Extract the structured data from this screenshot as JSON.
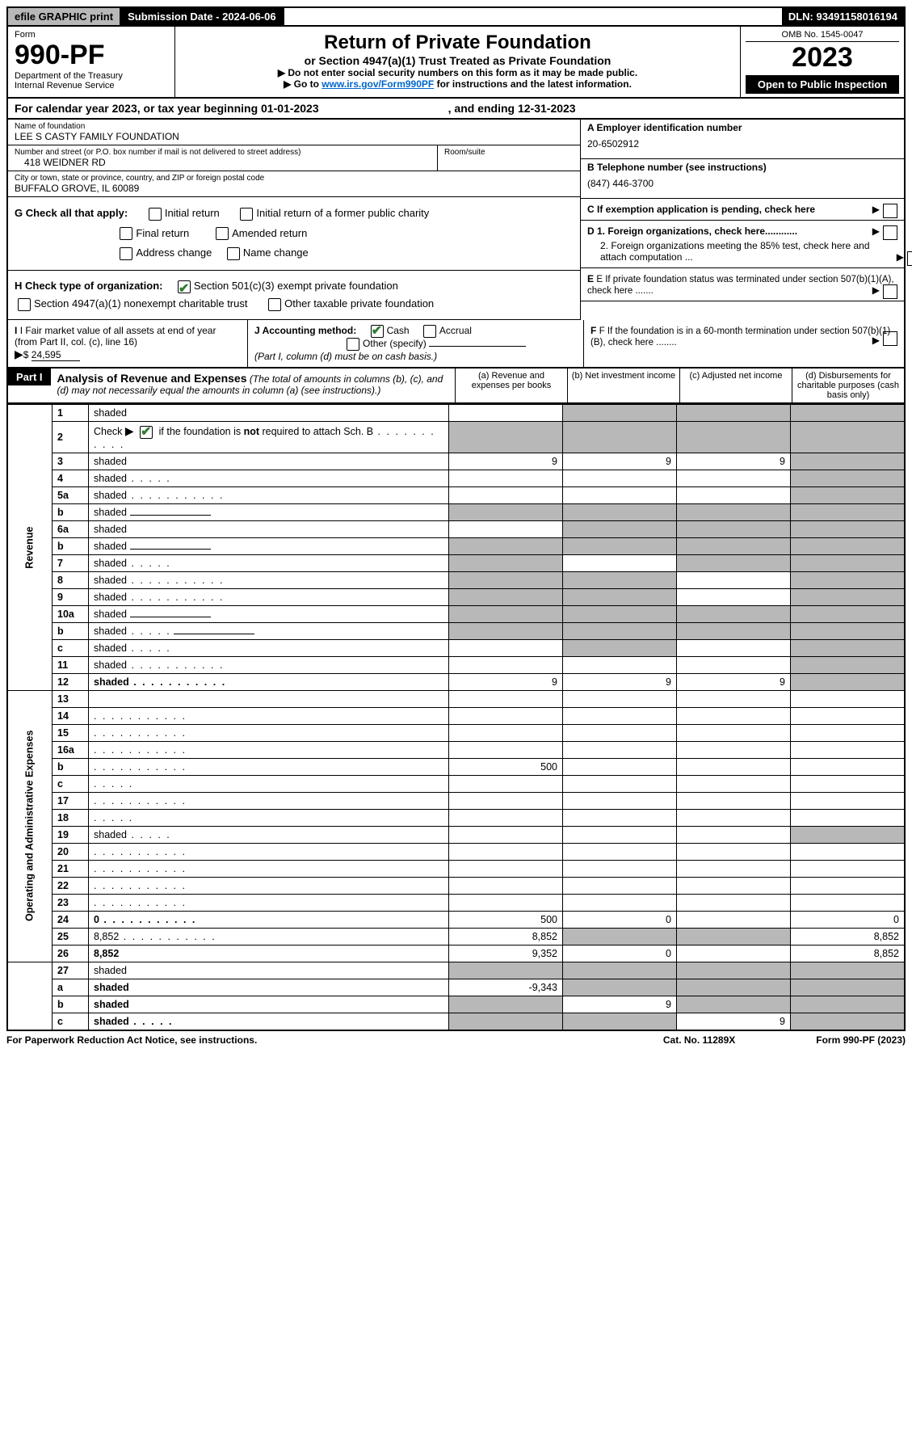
{
  "top": {
    "efile": "efile GRAPHIC print",
    "submission": "Submission Date - 2024-06-06",
    "dln": "DLN: 93491158016194"
  },
  "header": {
    "form_label": "Form",
    "form_no": "990-PF",
    "dept": "Department of the Treasury",
    "irs": "Internal Revenue Service",
    "title": "Return of Private Foundation",
    "subtitle": "or Section 4947(a)(1) Trust Treated as Private Foundation",
    "instr1": "▶ Do not enter social security numbers on this form as it may be made public.",
    "instr2_pre": "▶ Go to ",
    "instr2_link": "www.irs.gov/Form990PF",
    "instr2_post": " for instructions and the latest information.",
    "omb": "OMB No. 1545-0047",
    "year": "2023",
    "open": "Open to Public Inspection"
  },
  "calyear": {
    "text": "For calendar year 2023, or tax year beginning 01-01-2023",
    "ending": ", and ending 12-31-2023"
  },
  "entity": {
    "name_label": "Name of foundation",
    "name": "LEE S CASTY FAMILY FOUNDATION",
    "addr_label": "Number and street (or P.O. box number if mail is not delivered to street address)",
    "addr": "418 WEIDNER RD",
    "room_label": "Room/suite",
    "city_label": "City or town, state or province, country, and ZIP or foreign postal code",
    "city": "BUFFALO GROVE, IL  60089",
    "ein_label": "A Employer identification number",
    "ein": "20-6502912",
    "phone_label": "B Telephone number (see instructions)",
    "phone": "(847) 446-3700",
    "c_label": "C If exemption application is pending, check here",
    "d1": "D 1. Foreign organizations, check here............",
    "d2": "2. Foreign organizations meeting the 85% test, check here and attach computation ...",
    "e_label": "E  If private foundation status was terminated under section 507(b)(1)(A), check here .......",
    "f_label": "F  If the foundation is in a 60-month termination under section 507(b)(1)(B), check here ........"
  },
  "g": {
    "label": "G Check all that apply:",
    "initial": "Initial return",
    "initial_former": "Initial return of a former public charity",
    "final": "Final return",
    "amended": "Amended return",
    "addr_change": "Address change",
    "name_change": "Name change"
  },
  "h": {
    "label": "H Check type of organization:",
    "opt1": "Section 501(c)(3) exempt private foundation",
    "opt2": "Section 4947(a)(1) nonexempt charitable trust",
    "opt3": "Other taxable private foundation"
  },
  "i": {
    "label": "I Fair market value of all assets at end of year (from Part II, col. (c), line 16)",
    "value": "24,595"
  },
  "j": {
    "label": "J Accounting method:",
    "cash": "Cash",
    "accrual": "Accrual",
    "other": "Other (specify)",
    "note": "(Part I, column (d) must be on cash basis.)"
  },
  "part1": {
    "label": "Part I",
    "title": "Analysis of Revenue and Expenses",
    "note": " (The total of amounts in columns (b), (c), and (d) may not necessarily equal the amounts in column (a) (see instructions).)",
    "col_a": "(a)   Revenue and expenses per books",
    "col_b": "(b)   Net investment income",
    "col_c": "(c)   Adjusted net income",
    "col_d": "(d)   Disbursements for charitable purposes (cash basis only)"
  },
  "side": {
    "revenue": "Revenue",
    "expenses": "Operating and Administrative Expenses"
  },
  "rows": [
    {
      "n": "1",
      "d": "shaded",
      "a": "",
      "b": "shaded",
      "c": "shaded"
    },
    {
      "n": "2",
      "d": "shaded",
      "dots": true,
      "a": "shaded",
      "b": "shaded",
      "c": "shaded"
    },
    {
      "n": "3",
      "d": "shaded",
      "a": "9",
      "b": "9",
      "c": "9"
    },
    {
      "n": "4",
      "d": "shaded",
      "dots": "short",
      "a": "",
      "b": "",
      "c": ""
    },
    {
      "n": "5a",
      "d": "shaded",
      "dots": true,
      "a": "",
      "b": "",
      "c": ""
    },
    {
      "n": "b",
      "d": "shaded",
      "inline": true,
      "a": "shaded",
      "b": "shaded",
      "c": "shaded"
    },
    {
      "n": "6a",
      "d": "shaded",
      "a": "",
      "b": "shaded",
      "c": "shaded"
    },
    {
      "n": "b",
      "d": "shaded",
      "inline": true,
      "a": "shaded",
      "b": "shaded",
      "c": "shaded"
    },
    {
      "n": "7",
      "d": "shaded",
      "dots": "short",
      "a": "shaded",
      "b": "",
      "c": "shaded"
    },
    {
      "n": "8",
      "d": "shaded",
      "dots": true,
      "a": "shaded",
      "b": "shaded",
      "c": ""
    },
    {
      "n": "9",
      "d": "shaded",
      "dots": true,
      "a": "shaded",
      "b": "shaded",
      "c": ""
    },
    {
      "n": "10a",
      "d": "shaded",
      "inline": true,
      "a": "shaded",
      "b": "shaded",
      "c": "shaded"
    },
    {
      "n": "b",
      "d": "shaded",
      "dots": "short",
      "inline": true,
      "a": "shaded",
      "b": "shaded",
      "c": "shaded"
    },
    {
      "n": "c",
      "d": "shaded",
      "dots": "short",
      "a": "",
      "b": "shaded",
      "c": ""
    },
    {
      "n": "11",
      "d": "shaded",
      "dots": true,
      "a": "",
      "b": "",
      "c": ""
    },
    {
      "n": "12",
      "d": "shaded",
      "dots": true,
      "bold": true,
      "a": "9",
      "b": "9",
      "c": "9"
    }
  ],
  "exp_rows": [
    {
      "n": "13",
      "d": "",
      "a": "",
      "b": "",
      "c": ""
    },
    {
      "n": "14",
      "d": "",
      "dots": true,
      "a": "",
      "b": "",
      "c": ""
    },
    {
      "n": "15",
      "d": "",
      "dots": true,
      "a": "",
      "b": "",
      "c": ""
    },
    {
      "n": "16a",
      "d": "",
      "dots": true,
      "a": "",
      "b": "",
      "c": ""
    },
    {
      "n": "b",
      "d": "",
      "dots": true,
      "a": "500",
      "b": "",
      "c": ""
    },
    {
      "n": "c",
      "d": "",
      "dots": "short",
      "a": "",
      "b": "",
      "c": ""
    },
    {
      "n": "17",
      "d": "",
      "dots": true,
      "a": "",
      "b": "",
      "c": ""
    },
    {
      "n": "18",
      "d": "",
      "dots": "short",
      "a": "",
      "b": "",
      "c": ""
    },
    {
      "n": "19",
      "d": "shaded",
      "dots": "short",
      "a": "",
      "b": "",
      "c": ""
    },
    {
      "n": "20",
      "d": "",
      "dots": true,
      "a": "",
      "b": "",
      "c": ""
    },
    {
      "n": "21",
      "d": "",
      "dots": true,
      "a": "",
      "b": "",
      "c": ""
    },
    {
      "n": "22",
      "d": "",
      "dots": true,
      "a": "",
      "b": "",
      "c": ""
    },
    {
      "n": "23",
      "d": "",
      "dots": true,
      "a": "",
      "b": "",
      "c": ""
    },
    {
      "n": "24",
      "d": "0",
      "dots": true,
      "bold": true,
      "a": "500",
      "b": "0",
      "c": ""
    },
    {
      "n": "25",
      "d": "8,852",
      "dots": true,
      "a": "8,852",
      "b": "shaded",
      "c": "shaded"
    },
    {
      "n": "26",
      "d": "8,852",
      "bold": true,
      "a": "9,352",
      "b": "0",
      "c": ""
    }
  ],
  "net_rows": [
    {
      "n": "27",
      "d": "shaded",
      "a": "shaded",
      "b": "shaded",
      "c": "shaded"
    },
    {
      "n": "a",
      "d": "shaded",
      "bold": true,
      "a": "-9,343",
      "b": "shaded",
      "c": "shaded"
    },
    {
      "n": "b",
      "d": "shaded",
      "bold": true,
      "a": "shaded",
      "b": "9",
      "c": "shaded"
    },
    {
      "n": "c",
      "d": "shaded",
      "dots": "short",
      "bold": true,
      "a": "shaded",
      "b": "shaded",
      "c": "9"
    }
  ],
  "footer": {
    "left": "For Paperwork Reduction Act Notice, see instructions.",
    "mid": "Cat. No. 11289X",
    "right": "Form 990-PF (2023)"
  }
}
